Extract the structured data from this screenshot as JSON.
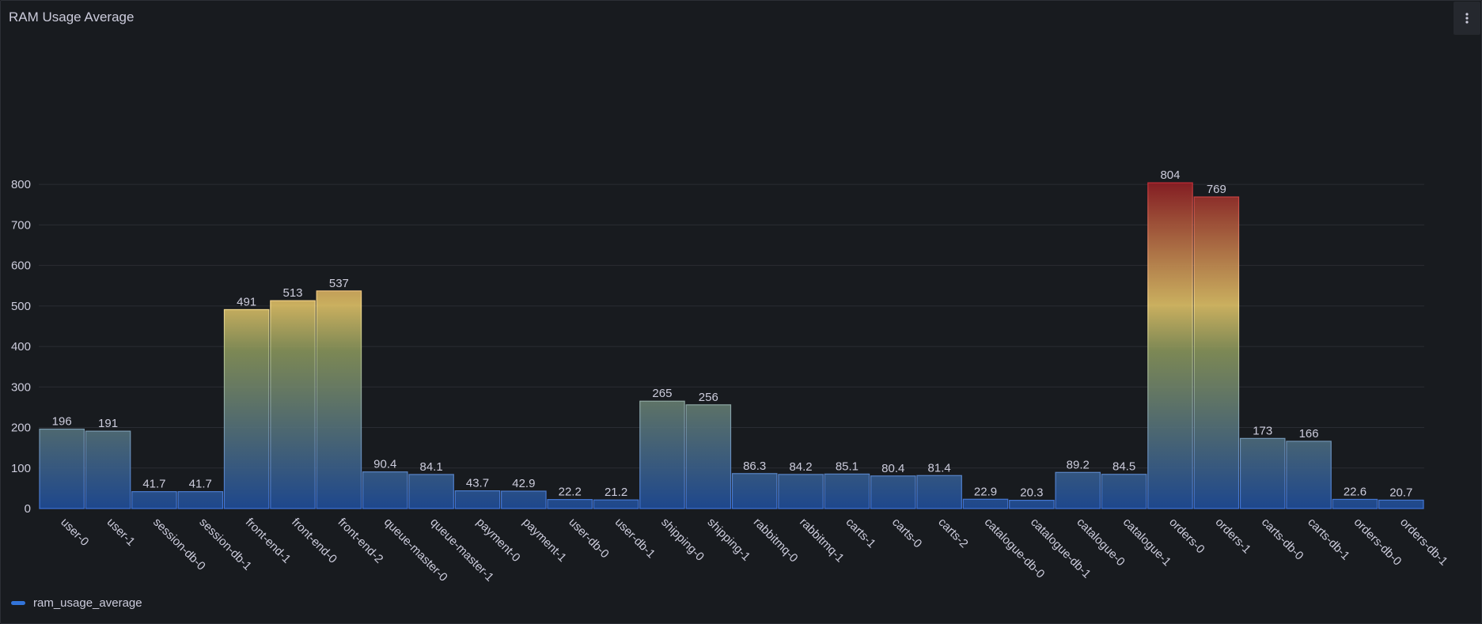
{
  "panel": {
    "title": "RAM Usage Average",
    "menu_icon": "vertical-ellipsis-icon"
  },
  "legend": {
    "items": [
      {
        "label": "ram_usage_average",
        "color": "#3274d9"
      }
    ]
  },
  "chart_data": {
    "type": "bar",
    "title": "RAM Usage Average",
    "xlabel": "",
    "ylabel": "",
    "ylim": [
      0,
      880
    ],
    "yticks": [
      0,
      100,
      200,
      300,
      400,
      500,
      600,
      700,
      800
    ],
    "grid": true,
    "legend_position": "bottom-left",
    "color_scheme": {
      "low": "#1f4fa0",
      "mid": "#8e9b5e",
      "high_mid": "#e9c96a",
      "high": "#8e1a22"
    },
    "categories": [
      "user-0",
      "user-1",
      "session-db-0",
      "session-db-1",
      "front-end-1",
      "front-end-0",
      "front-end-2",
      "queue-master-0",
      "queue-master-1",
      "payment-0",
      "payment-1",
      "user-db-0",
      "user-db-1",
      "shipping-0",
      "shipping-1",
      "rabbitmq-0",
      "rabbitmq-1",
      "carts-1",
      "carts-0",
      "carts-2",
      "catalogue-db-0",
      "catalogue-db-1",
      "catalogue-0",
      "catalogue-1",
      "orders-0",
      "orders-1",
      "carts-db-0",
      "carts-db-1",
      "orders-db-0",
      "orders-db-1"
    ],
    "series": [
      {
        "name": "ram_usage_average",
        "values": [
          196,
          191,
          41.7,
          41.7,
          491,
          513,
          537,
          90.4,
          84.1,
          43.7,
          42.9,
          22.2,
          21.2,
          265,
          256,
          86.3,
          84.2,
          85.1,
          80.4,
          81.4,
          22.9,
          20.3,
          89.2,
          84.5,
          804,
          769,
          173,
          166,
          22.6,
          20.7
        ],
        "labels": [
          "196",
          "191",
          "41.7",
          "41.7",
          "491",
          "513",
          "537",
          "90.4",
          "84.1",
          "43.7",
          "42.9",
          "22.2",
          "21.2",
          "265",
          "256",
          "86.3",
          "84.2",
          "85.1",
          "80.4",
          "81.4",
          "22.9",
          "20.3",
          "89.2",
          "84.5",
          "804",
          "769",
          "173",
          "166",
          "22.6",
          "20.7"
        ]
      }
    ]
  }
}
